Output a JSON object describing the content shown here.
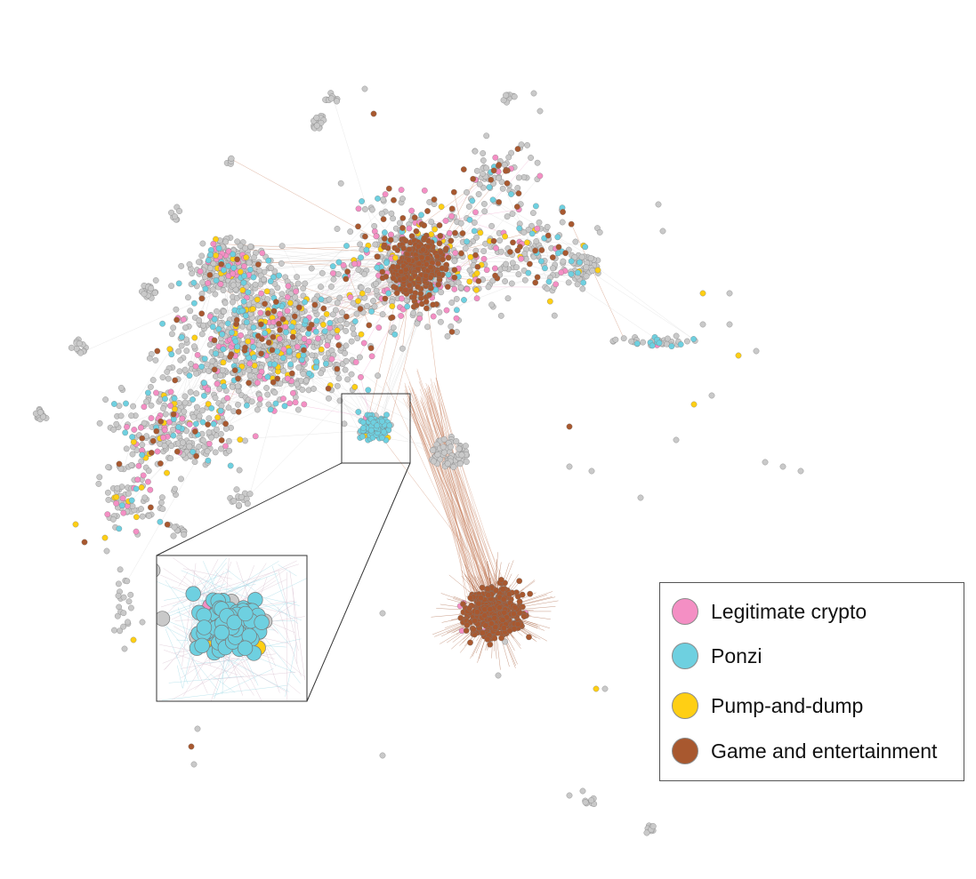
{
  "colors": {
    "neutral": "#c9c9c9",
    "neutral_stroke": "#7a7a7a",
    "edge": "#d8d8d8"
  },
  "legend": {
    "items": [
      {
        "key": "legit",
        "label": "Legitimate crypto",
        "color": "#f48fc4"
      },
      {
        "key": "ponzi",
        "label": "Ponzi",
        "color": "#6ed0e0"
      },
      {
        "key": "pump",
        "label": "Pump-and-dump",
        "color": "#ffcf14"
      },
      {
        "key": "game",
        "label": "Game and entertainment",
        "color": "#a8582f"
      }
    ]
  }
}
